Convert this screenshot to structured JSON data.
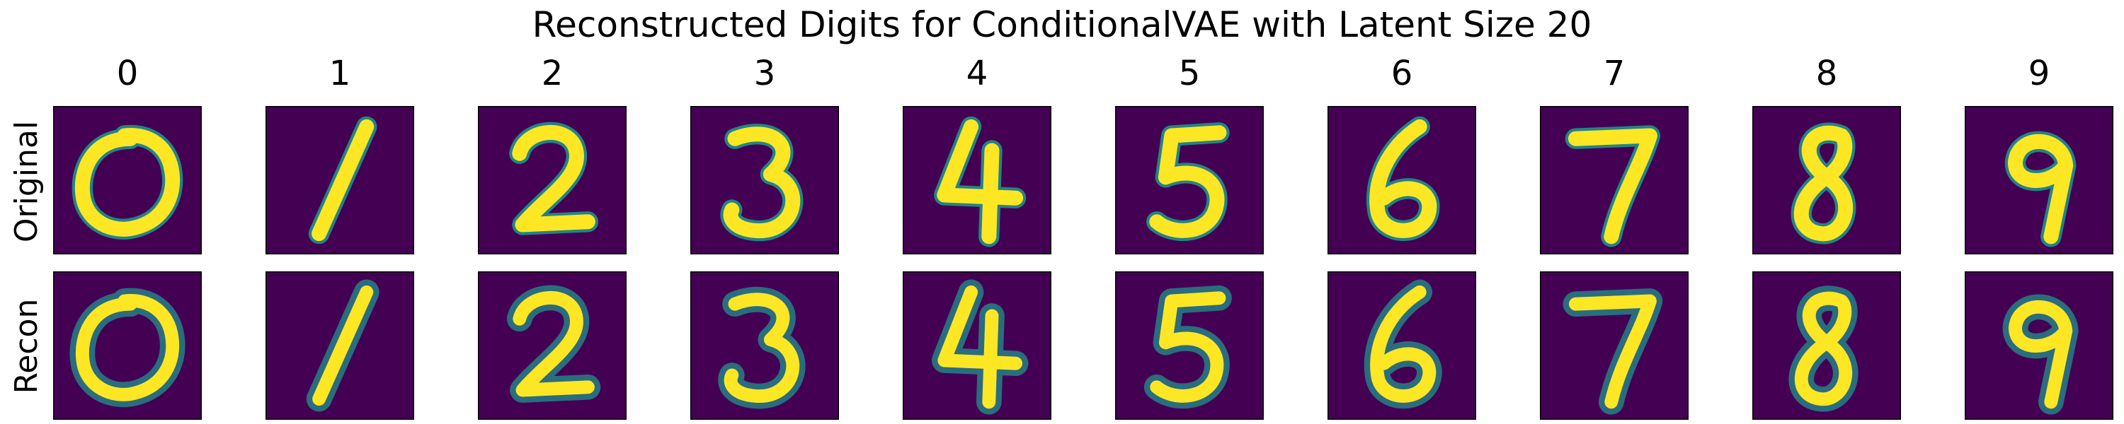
{
  "chart_data": {
    "type": "image-grid",
    "title": "Reconstructed Digits for ConditionalVAE with Latent Size 20",
    "columns": [
      "0",
      "1",
      "2",
      "3",
      "4",
      "5",
      "6",
      "7",
      "8",
      "9"
    ],
    "rows": [
      "Original",
      "Recon"
    ],
    "colormap": {
      "background": "#440154",
      "mid": "#21918c",
      "high": "#fde725"
    }
  }
}
